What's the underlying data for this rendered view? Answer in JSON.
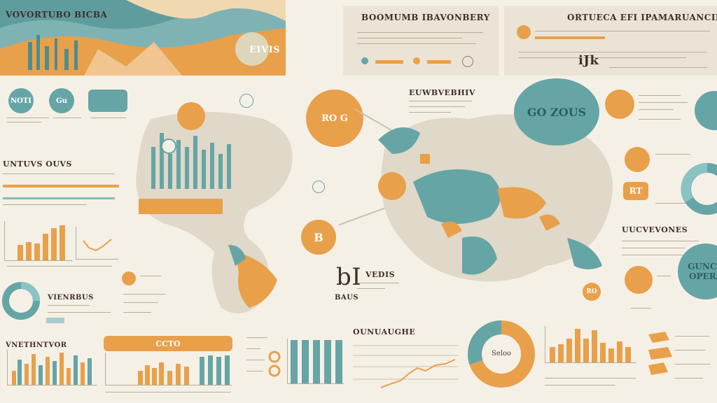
{
  "header": {
    "left_banner_text": "VOVORTUBO BICBA",
    "left_banner_sub": "EIVIS",
    "center_title": "BOOMUMB IBAVONBERY",
    "right_title": "ORTUECA EFI IPAMARUANCINE",
    "right_logo": "iJk"
  },
  "left_column": {
    "badge_1": "NOTI",
    "badge_2": "Gu",
    "section_title": "UNTUVS OUVS",
    "donut_title": "VIENRBUS",
    "bottom_title": "VNETHNTVOR"
  },
  "center": {
    "circle_top": "RO G",
    "circle_mid": "B",
    "section_title": "EUWBVEBHIV",
    "big_letters": "bI",
    "big_sub": "VEDIS",
    "small_label": "BAUS",
    "bottom_title": "OUNUAUGHE",
    "orange_pill": "CCTO",
    "donut_label": "Seloo",
    "map_badge": "RO"
  },
  "right_column": {
    "circle_big": "GO ZOUS",
    "section_title": "UUCVEVONES",
    "circle_teal_right": "GUNCK OPERA",
    "orange_small": "RT"
  },
  "colors": {
    "teal": "#66a5a6",
    "orange": "#e8a04a",
    "background": "#f5f0e6",
    "panel": "#ebe4d6"
  },
  "icons": [
    "pin-icon",
    "target-icon",
    "globe-icon",
    "chart-icon"
  ]
}
